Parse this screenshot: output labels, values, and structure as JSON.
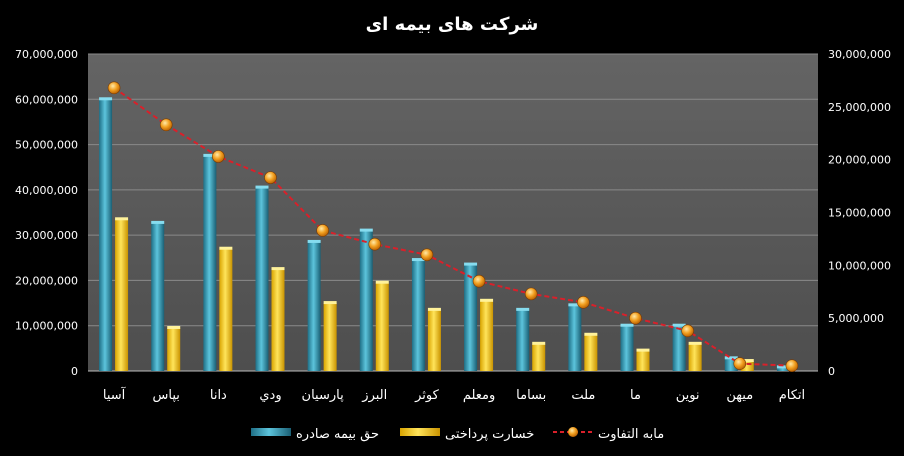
{
  "chart_data": {
    "type": "bar",
    "title": "شرکت های بیمه ای",
    "categories": [
      "آسيا",
      "بپاس",
      "دانا",
      "ودي",
      "پارسيان",
      "البرز",
      "کوثر",
      "ومعلم",
      "بساما",
      "ملت",
      "ما",
      "نوين",
      "ميهن",
      "اتكام"
    ],
    "series": [
      {
        "name": "حق بيمه صادره",
        "axis": "left",
        "color": "#3aa6c0",
        "values": [
          60000000,
          32700000,
          47500000,
          40500000,
          28500000,
          31000000,
          24500000,
          23500000,
          13500000,
          14500000,
          10000000,
          10000000,
          2800000,
          800000
        ]
      },
      {
        "name": "خسارت پرداختی",
        "axis": "left",
        "color": "#ffd21a",
        "values": [
          33500000,
          9500000,
          27000000,
          22500000,
          15000000,
          19500000,
          13500000,
          15500000,
          6000000,
          8000000,
          4500000,
          6000000,
          2200000,
          0
        ]
      },
      {
        "name": "مابه التفاوت",
        "axis": "right",
        "type": "line",
        "color": "#d9202a",
        "marker_color": "#f2a020",
        "values": [
          26800000,
          23300000,
          20300000,
          18300000,
          13300000,
          12000000,
          11000000,
          8500000,
          7300000,
          6500000,
          5000000,
          3800000,
          700000,
          500000
        ]
      }
    ],
    "y_left": {
      "min": 0,
      "max": 70000000,
      "ticks": [
        "0",
        "10,000,000",
        "20,000,000",
        "30,000,000",
        "40,000,000",
        "50,000,000",
        "60,000,000",
        "70,000,000"
      ]
    },
    "y_right": {
      "min": 0,
      "max": 30000000,
      "ticks": [
        "0",
        "5,000,000",
        "10,000,000",
        "15,000,000",
        "20,000,000",
        "25,000,000",
        "30,000,000"
      ]
    },
    "grid": true,
    "legend_position": "bottom",
    "plot_background": "#595959",
    "text_color": "#ffffff"
  }
}
